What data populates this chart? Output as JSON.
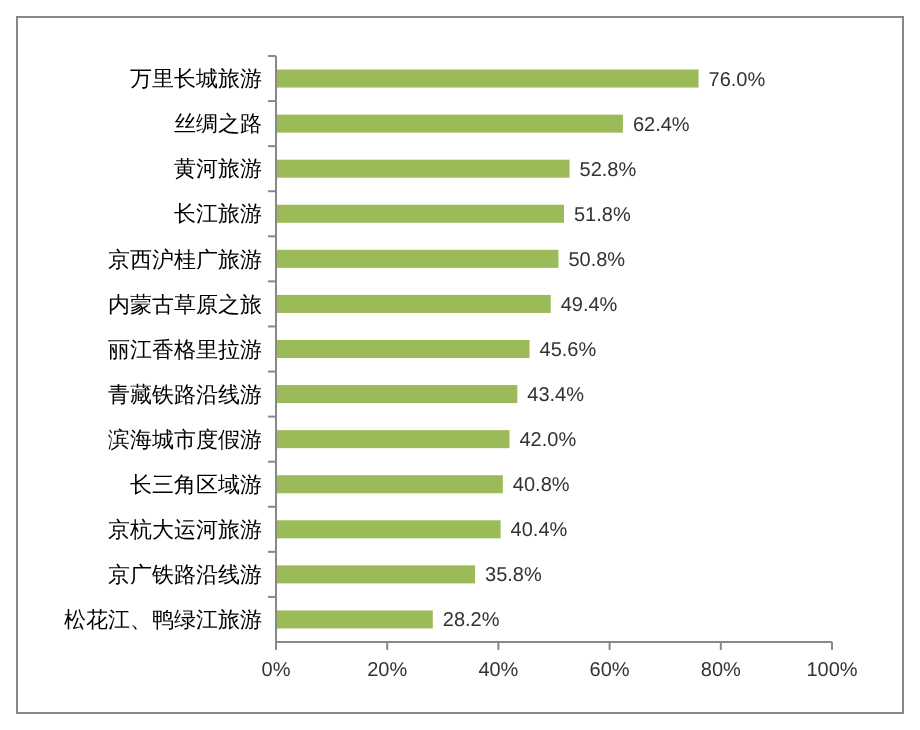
{
  "chart_data": {
    "type": "bar",
    "orientation": "horizontal",
    "categories": [
      "万里长城旅游",
      "丝绸之路",
      "黄河旅游",
      "长江旅游",
      "京西沪桂广旅游",
      "内蒙古草原之旅",
      "丽江香格里拉游",
      "青藏铁路沿线游",
      "滨海城市度假游",
      "长三角区域游",
      "京杭大运河旅游",
      "京广铁路沿线游",
      "松花江、鸭绿江旅游"
    ],
    "values": [
      76.0,
      62.4,
      52.8,
      51.8,
      50.8,
      49.4,
      45.6,
      43.4,
      42.0,
      40.8,
      40.4,
      35.8,
      28.2
    ],
    "value_labels": [
      "76.0%",
      "62.4%",
      "52.8%",
      "51.8%",
      "50.8%",
      "49.4%",
      "45.6%",
      "43.4%",
      "42.0%",
      "40.8%",
      "40.4%",
      "35.8%",
      "28.2%"
    ],
    "color": "#9bbb59",
    "xlim": [
      0,
      100
    ],
    "xticks": [
      {
        "value": 0,
        "label": "0%"
      },
      {
        "value": 20,
        "label": "20%"
      },
      {
        "value": 40,
        "label": "40%"
      },
      {
        "value": 60,
        "label": "60%"
      },
      {
        "value": 80,
        "label": "80%"
      },
      {
        "value": 100,
        "label": "100%"
      }
    ],
    "grid": false
  }
}
